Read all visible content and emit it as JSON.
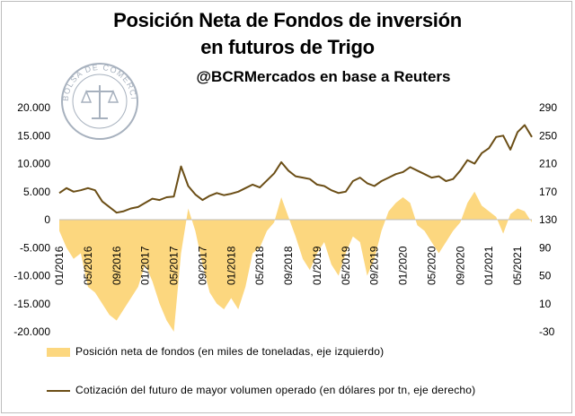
{
  "header": {
    "title_line1": "Posición Neta de Fondos de inversión",
    "title_line2": "en futuros de Trigo",
    "source": "@BCRMercados en base a Reuters",
    "logo_text": "BOLSA DE COMERCIO DE ROSARIO"
  },
  "colors": {
    "fill": "#fcd77f",
    "line": "#6b4e16",
    "logo": "#a7b1be"
  },
  "legend": {
    "fill_label": "Posición neta de fondos (en miles de toneladas, eje izquierdo)",
    "line_label": "Cotización del futuro de mayor volumen operado (en dólares por tn, eje derecho)"
  },
  "chart_data": {
    "type": "area",
    "left_axis": {
      "ticks": [
        "20.000",
        "15.000",
        "10.000",
        "5.000",
        "0",
        "-5.000",
        "-10.000",
        "-15.000",
        "-20.000"
      ],
      "range": [
        -20000,
        20000
      ]
    },
    "right_axis": {
      "ticks": [
        "290",
        "250",
        "210",
        "170",
        "130",
        "90",
        "50",
        "10",
        "-30"
      ],
      "range": [
        -30,
        290
      ]
    },
    "x_ticks": [
      "01/2016",
      "05/2016",
      "09/2016",
      "01/2017",
      "05/2017",
      "09/2017",
      "01/2018",
      "05/2018",
      "09/2018",
      "01/2019",
      "05/2019",
      "09/2019",
      "01/2020",
      "05/2020",
      "09/2020",
      "01/2021",
      "05/2021"
    ],
    "months": [
      "01/2016",
      "02/2016",
      "03/2016",
      "04/2016",
      "05/2016",
      "06/2016",
      "07/2016",
      "08/2016",
      "09/2016",
      "10/2016",
      "11/2016",
      "12/2016",
      "01/2017",
      "02/2017",
      "03/2017",
      "04/2017",
      "05/2017",
      "06/2017",
      "07/2017",
      "08/2017",
      "09/2017",
      "10/2017",
      "11/2017",
      "12/2017",
      "01/2018",
      "02/2018",
      "03/2018",
      "04/2018",
      "05/2018",
      "06/2018",
      "07/2018",
      "08/2018",
      "09/2018",
      "10/2018",
      "11/2018",
      "12/2018",
      "01/2019",
      "02/2019",
      "03/2019",
      "04/2019",
      "05/2019",
      "06/2019",
      "07/2019",
      "08/2019",
      "09/2019",
      "10/2019",
      "11/2019",
      "12/2019",
      "01/2020",
      "02/2020",
      "03/2020",
      "04/2020",
      "05/2020",
      "06/2020",
      "07/2020",
      "08/2020",
      "09/2020",
      "10/2020",
      "11/2020",
      "12/2020",
      "01/2021",
      "02/2021",
      "03/2021",
      "04/2021",
      "05/2021",
      "06/2021",
      "07/2021"
    ],
    "series": [
      {
        "name": "Posición neta de fondos (en miles de toneladas, eje izquierdo)",
        "axis": "left",
        "kind": "area",
        "values": [
          -2000,
          -5000,
          -7000,
          -6000,
          -12000,
          -13000,
          -15000,
          -17000,
          -18000,
          -16000,
          -14000,
          -12000,
          -8000,
          -11000,
          -15000,
          -18000,
          -20000,
          -6000,
          2000,
          -2000,
          -8000,
          -13000,
          -15000,
          -16000,
          -14000,
          -16000,
          -12000,
          -6000,
          -5000,
          -2000,
          -500,
          4000,
          500,
          -3000,
          -7000,
          -9000,
          -6000,
          -4000,
          -8000,
          -10000,
          -6000,
          -3000,
          -4000,
          -10000,
          -7000,
          -2000,
          1500,
          3000,
          4000,
          3000,
          -1000,
          -2000,
          -4000,
          -6000,
          -4000,
          -2000,
          -500,
          3000,
          5000,
          2500,
          1500,
          500,
          -2500,
          1000,
          2000,
          1500,
          -500
        ]
      },
      {
        "name": "Cotización del futuro de mayor volumen operado (en dólares por tn, eje derecho)",
        "axis": "right",
        "kind": "line",
        "values": [
          168,
          175,
          170,
          172,
          175,
          172,
          156,
          148,
          140,
          142,
          146,
          148,
          154,
          160,
          158,
          162,
          163,
          206,
          178,
          166,
          158,
          164,
          168,
          165,
          167,
          170,
          175,
          180,
          176,
          186,
          196,
          212,
          200,
          192,
          190,
          188,
          180,
          178,
          172,
          168,
          170,
          185,
          190,
          182,
          178,
          185,
          190,
          195,
          198,
          205,
          200,
          195,
          190,
          192,
          185,
          188,
          200,
          215,
          210,
          225,
          232,
          248,
          250,
          230,
          255,
          265,
          248
        ]
      }
    ]
  }
}
